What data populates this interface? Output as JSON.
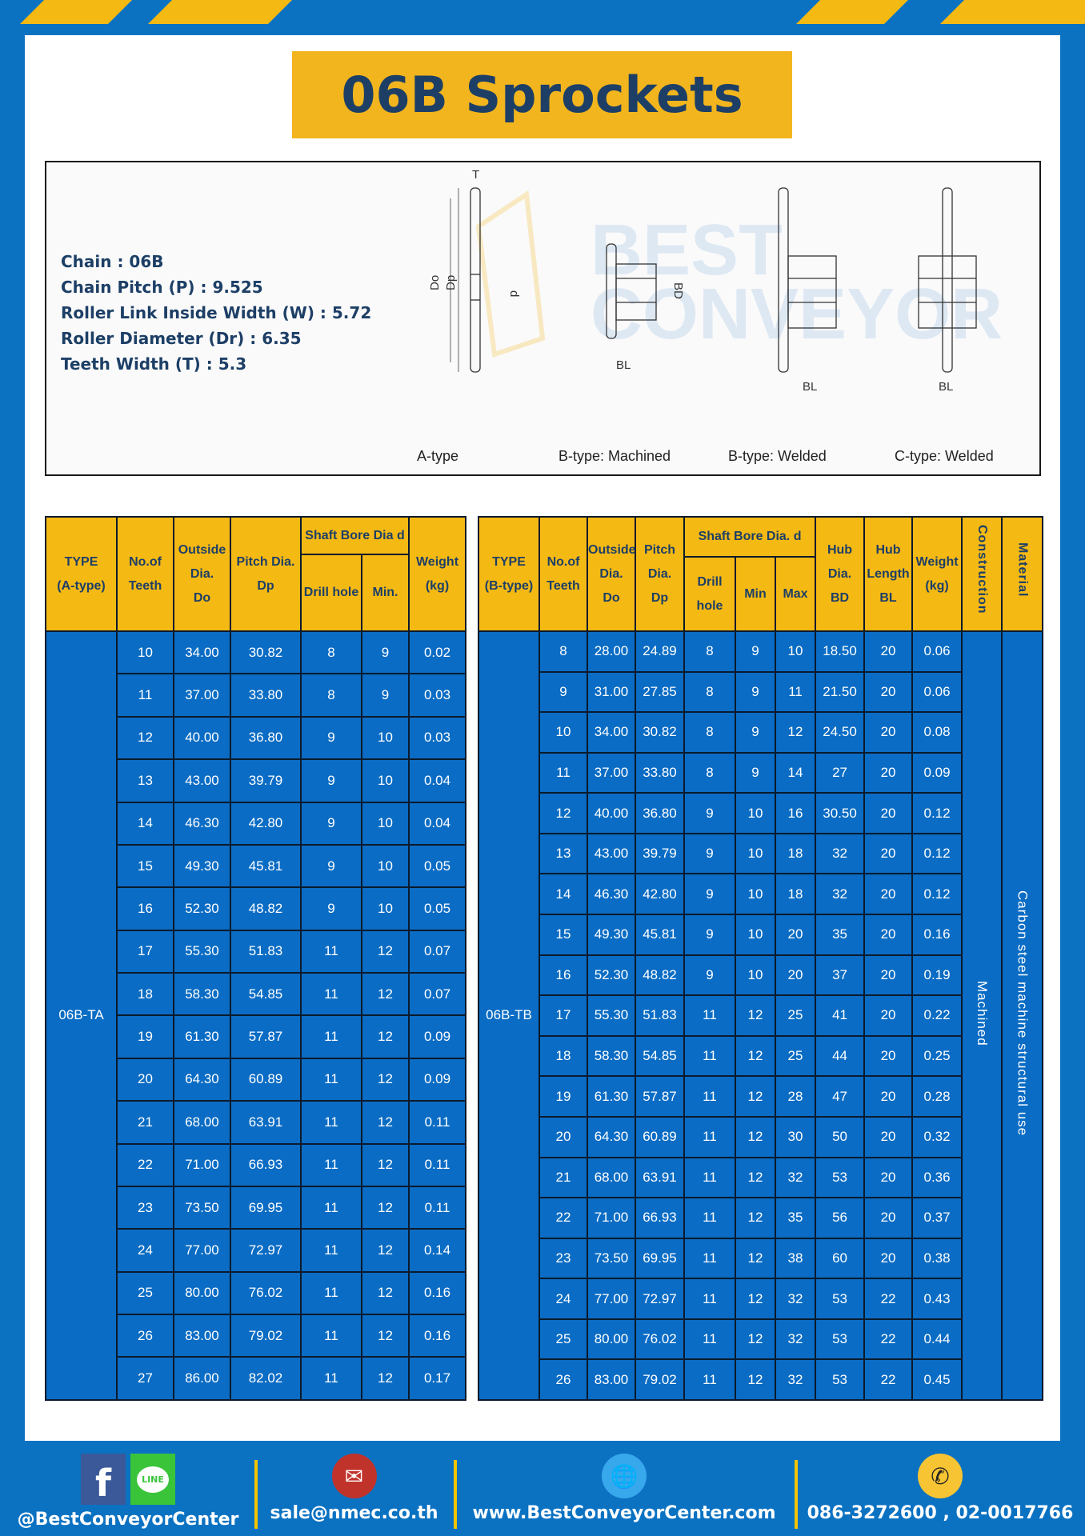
{
  "title": "06B Sprockets",
  "specs": [
    "Chain  : 06B",
    "Chain Pitch (P)  :  9.525",
    "Roller Link Inside Width (W)  :  5.72",
    "Roller Diameter (Dr) : 6.35",
    "Teeth Width (T)  :  5.3"
  ],
  "diagram": {
    "types": [
      "A-type",
      "B-type: Machined",
      "B-type: Welded",
      "C-type: Welded"
    ],
    "dims": {
      "T": "T",
      "Do": "Do",
      "Dp": "Dp",
      "d": "d",
      "BD": "BD",
      "BL": "BL"
    }
  },
  "tableA": {
    "headers": {
      "type": "TYPE",
      "type_sub": "(A-type)",
      "teeth": "No.of",
      "teeth_sub": "Teeth",
      "od": "Outside",
      "od_sub": "Dia.",
      "od_sub2": "Do",
      "pd": "Pitch Dia.",
      "pd_sub": "Dp",
      "bore": "Shaft Bore Dia d",
      "drill": "Drill hole",
      "min": "Min.",
      "weight": "Weight",
      "weight_sub": "(kg)"
    },
    "type_value": "06B-TA",
    "rows": [
      [
        "10",
        "34.00",
        "30.82",
        "8",
        "9",
        "0.02"
      ],
      [
        "11",
        "37.00",
        "33.80",
        "8",
        "9",
        "0.03"
      ],
      [
        "12",
        "40.00",
        "36.80",
        "9",
        "10",
        "0.03"
      ],
      [
        "13",
        "43.00",
        "39.79",
        "9",
        "10",
        "0.04"
      ],
      [
        "14",
        "46.30",
        "42.80",
        "9",
        "10",
        "0.04"
      ],
      [
        "15",
        "49.30",
        "45.81",
        "9",
        "10",
        "0.05"
      ],
      [
        "16",
        "52.30",
        "48.82",
        "9",
        "10",
        "0.05"
      ],
      [
        "17",
        "55.30",
        "51.83",
        "11",
        "12",
        "0.07"
      ],
      [
        "18",
        "58.30",
        "54.85",
        "11",
        "12",
        "0.07"
      ],
      [
        "19",
        "61.30",
        "57.87",
        "11",
        "12",
        "0.09"
      ],
      [
        "20",
        "64.30",
        "60.89",
        "11",
        "12",
        "0.09"
      ],
      [
        "21",
        "68.00",
        "63.91",
        "11",
        "12",
        "0.11"
      ],
      [
        "22",
        "71.00",
        "66.93",
        "11",
        "12",
        "0.11"
      ],
      [
        "23",
        "73.50",
        "69.95",
        "11",
        "12",
        "0.11"
      ],
      [
        "24",
        "77.00",
        "72.97",
        "11",
        "12",
        "0.14"
      ],
      [
        "25",
        "80.00",
        "76.02",
        "11",
        "12",
        "0.16"
      ],
      [
        "26",
        "83.00",
        "79.02",
        "11",
        "12",
        "0.16"
      ],
      [
        "27",
        "86.00",
        "82.02",
        "11",
        "12",
        "0.17"
      ]
    ]
  },
  "tableB": {
    "headers": {
      "type": "TYPE",
      "type_sub": "(B-type)",
      "teeth": "No.of",
      "teeth_sub": "Teeth",
      "od": "Outside",
      "od_sub": "Dia.",
      "od_sub2": "Do",
      "pd": "Pitch",
      "pd_sub": "Dia.",
      "pd_sub2": "Dp",
      "bore": "Shaft Bore Dia. d",
      "drill": "Drill hole",
      "min": "Min",
      "max": "Max",
      "hub": "Hub",
      "hub_sub": "Dia.",
      "hub_sub2": "BD",
      "hubl": "Hub",
      "hubl_sub": "Length",
      "hubl_sub2": "BL",
      "weight": "Weight",
      "weight_sub": "(kg)",
      "construction": "Construction",
      "material": "Material"
    },
    "type_value": "06B-TB",
    "construction_value": "Machined",
    "material_value": "Carbon steel machine structural use",
    "rows": [
      [
        "8",
        "28.00",
        "24.89",
        "8",
        "9",
        "10",
        "18.50",
        "20",
        "0.06"
      ],
      [
        "9",
        "31.00",
        "27.85",
        "8",
        "9",
        "11",
        "21.50",
        "20",
        "0.06"
      ],
      [
        "10",
        "34.00",
        "30.82",
        "8",
        "9",
        "12",
        "24.50",
        "20",
        "0.08"
      ],
      [
        "11",
        "37.00",
        "33.80",
        "8",
        "9",
        "14",
        "27",
        "20",
        "0.09"
      ],
      [
        "12",
        "40.00",
        "36.80",
        "9",
        "10",
        "16",
        "30.50",
        "20",
        "0.12"
      ],
      [
        "13",
        "43.00",
        "39.79",
        "9",
        "10",
        "18",
        "32",
        "20",
        "0.12"
      ],
      [
        "14",
        "46.30",
        "42.80",
        "9",
        "10",
        "18",
        "32",
        "20",
        "0.12"
      ],
      [
        "15",
        "49.30",
        "45.81",
        "9",
        "10",
        "20",
        "35",
        "20",
        "0.16"
      ],
      [
        "16",
        "52.30",
        "48.82",
        "9",
        "10",
        "20",
        "37",
        "20",
        "0.19"
      ],
      [
        "17",
        "55.30",
        "51.83",
        "11",
        "12",
        "25",
        "41",
        "20",
        "0.22"
      ],
      [
        "18",
        "58.30",
        "54.85",
        "11",
        "12",
        "25",
        "44",
        "20",
        "0.25"
      ],
      [
        "19",
        "61.30",
        "57.87",
        "11",
        "12",
        "28",
        "47",
        "20",
        "0.28"
      ],
      [
        "20",
        "64.30",
        "60.89",
        "11",
        "12",
        "30",
        "50",
        "20",
        "0.32"
      ],
      [
        "21",
        "68.00",
        "63.91",
        "11",
        "12",
        "32",
        "53",
        "20",
        "0.36"
      ],
      [
        "22",
        "71.00",
        "66.93",
        "11",
        "12",
        "35",
        "56",
        "20",
        "0.37"
      ],
      [
        "23",
        "73.50",
        "69.95",
        "11",
        "12",
        "38",
        "60",
        "20",
        "0.38"
      ],
      [
        "24",
        "77.00",
        "72.97",
        "11",
        "12",
        "32",
        "53",
        "22",
        "0.43"
      ],
      [
        "25",
        "80.00",
        "76.02",
        "11",
        "12",
        "32",
        "53",
        "22",
        "0.44"
      ],
      [
        "26",
        "83.00",
        "79.02",
        "11",
        "12",
        "32",
        "53",
        "22",
        "0.45"
      ]
    ]
  },
  "footer": {
    "social": "@BestConveyorCenter",
    "line_icon_text": "LINE",
    "email": "sale@nmec.co.th",
    "website": "www.BestConveyorCenter.com",
    "phone": "086-3272600 , 02-0017766"
  },
  "colors": {
    "brand_blue": "#0b72c2",
    "accent_yellow": "#f5b914",
    "navy_text": "#1d3f66"
  }
}
